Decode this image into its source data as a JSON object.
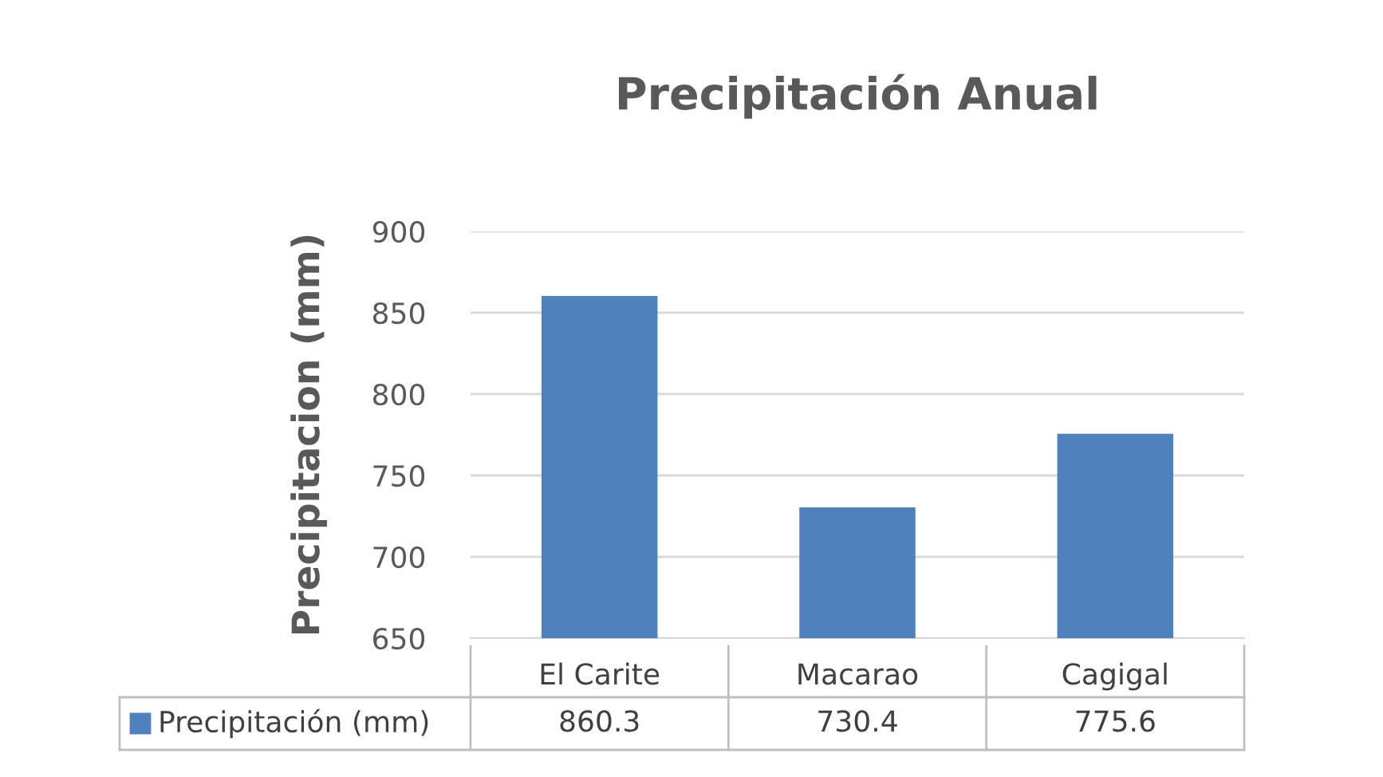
{
  "chart_data": {
    "type": "bar",
    "title": "Precipitación Anual",
    "ylabel": "Precipitacion (mm)",
    "categories": [
      "El Carite",
      "Macarao",
      "Cagigal"
    ],
    "series": [
      {
        "name": "Precipitación (mm)",
        "color": "#4f81bd",
        "values": [
          860.3,
          730.4,
          775.6
        ]
      }
    ],
    "ylim": [
      650,
      900
    ],
    "yticks": [
      650,
      700,
      750,
      800,
      850,
      900
    ],
    "grid": "y",
    "legend": "bottom",
    "data_labels": true
  }
}
